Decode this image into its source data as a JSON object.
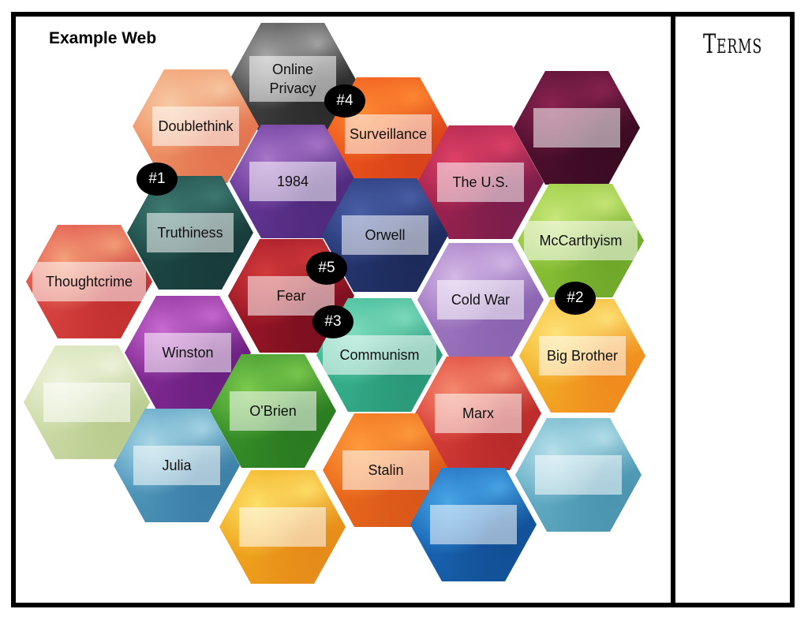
{
  "title": "Example Web",
  "terms_heading": "Terms",
  "hexes": [
    {
      "label": "Online\nPrivacy",
      "colors": [
        "#4a4a4a",
        "#a8a8a8",
        "#2b2b2b"
      ]
    },
    {
      "label": "Doublethink",
      "colors": [
        "#f4a06e",
        "#f7c9a4",
        "#e2724e"
      ]
    },
    {
      "label": "Surveillance",
      "colors": [
        "#f25a1b",
        "#ff8a33",
        "#d9431a"
      ]
    },
    {
      "label": "",
      "colors": [
        "#5a1233",
        "#8a2351",
        "#3a0b22"
      ]
    },
    {
      "label": "1984",
      "colors": [
        "#6d3aa0",
        "#a876c9",
        "#4e2a7c"
      ]
    },
    {
      "label": "The U.S.",
      "colors": [
        "#b1244f",
        "#e04166",
        "#7a1e4c"
      ]
    },
    {
      "label": "Truthiness",
      "colors": [
        "#1f4f4a",
        "#3f7a73",
        "#183b3a"
      ]
    },
    {
      "label": "Orwell",
      "colors": [
        "#2b3c7c",
        "#4a5fa8",
        "#1c2a5a"
      ]
    },
    {
      "label": "McCarthyism",
      "colors": [
        "#9bd03e",
        "#c8e67a",
        "#6fa82a"
      ]
    },
    {
      "label": "Thoughtcrime",
      "colors": [
        "#e54f4a",
        "#f4a17a",
        "#c23030"
      ]
    },
    {
      "label": "Fear",
      "colors": [
        "#a81a2a",
        "#d33b3b",
        "#7a0f1e"
      ]
    },
    {
      "label": "Cold War",
      "colors": [
        "#a77ec7",
        "#d4b8e6",
        "#8a63b0"
      ]
    },
    {
      "label": "Winston",
      "colors": [
        "#8d2f9b",
        "#c86ad1",
        "#6a2080"
      ]
    },
    {
      "label": "Communism",
      "colors": [
        "#3dbd96",
        "#7fdcbe",
        "#2a9878"
      ]
    },
    {
      "label": "Big Brother",
      "colors": [
        "#f5c12a",
        "#fde27a",
        "#f08a1e"
      ]
    },
    {
      "label": "",
      "colors": [
        "#d8e3b7",
        "#eef3dc",
        "#b9cc8e"
      ]
    },
    {
      "label": "O'Brien",
      "colors": [
        "#3e9a2e",
        "#7bc94e",
        "#2a7a20"
      ]
    },
    {
      "label": "Marx",
      "colors": [
        "#e5463d",
        "#f58a6e",
        "#b82a2a"
      ]
    },
    {
      "label": "Julia",
      "colors": [
        "#5aa3c6",
        "#a9d7e6",
        "#3b7fa6"
      ]
    },
    {
      "label": "Stalin",
      "colors": [
        "#f2731c",
        "#ff9b3d",
        "#d9561a"
      ]
    },
    {
      "label": "",
      "colors": [
        "#6fb8cf",
        "#b7e0ea",
        "#4a94b0"
      ]
    },
    {
      "label": "",
      "colors": [
        "#f5b31c",
        "#fde06a",
        "#e58a1a"
      ]
    },
    {
      "label": "",
      "colors": [
        "#1d6fc2",
        "#49a6e6",
        "#124f95"
      ]
    }
  ],
  "badges": [
    "#1",
    "#2",
    "#3",
    "#4",
    "#5"
  ]
}
